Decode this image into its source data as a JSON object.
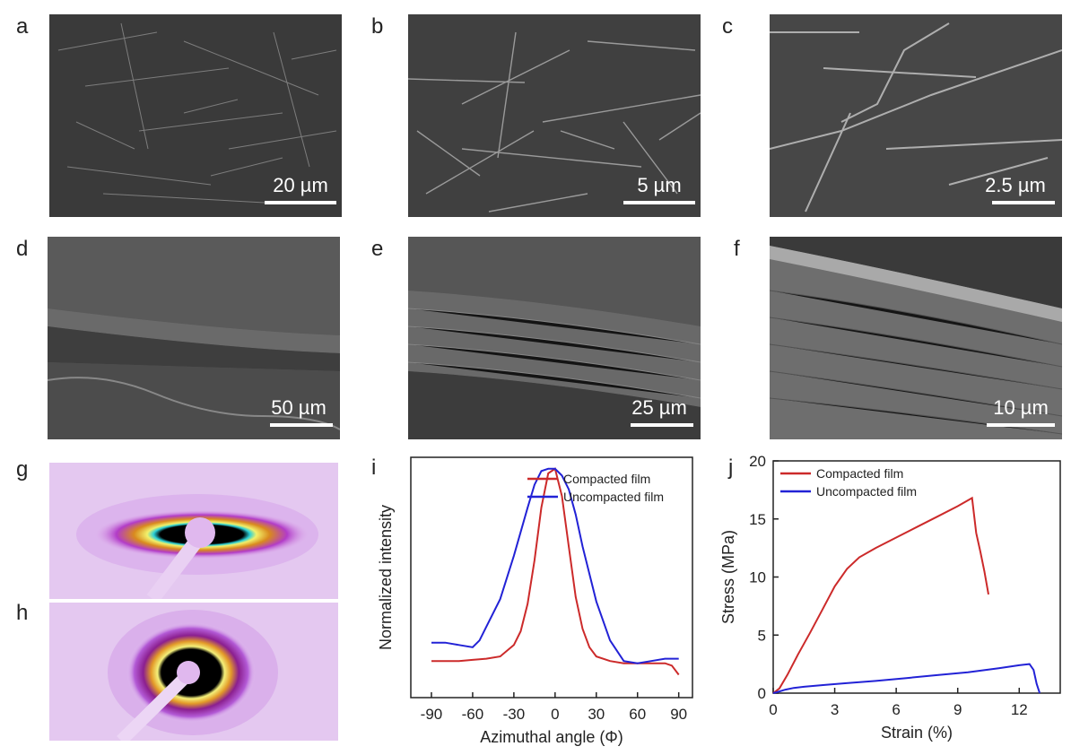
{
  "panels": {
    "a": {
      "label": "a",
      "scale": "20 µm"
    },
    "b": {
      "label": "b",
      "scale": "5 µm"
    },
    "c": {
      "label": "c",
      "scale": "2.5 µm"
    },
    "d": {
      "label": "d",
      "scale": "50 µm"
    },
    "e": {
      "label": "e",
      "scale": "25 µm"
    },
    "f": {
      "label": "f",
      "scale": "10 µm"
    },
    "g": {
      "label": "g"
    },
    "h": {
      "label": "h"
    },
    "i": {
      "label": "i"
    },
    "j": {
      "label": "j"
    }
  },
  "colors": {
    "compacted": "#cc2a2a",
    "uncompacted": "#2222d6"
  },
  "chart_data": [
    {
      "panel": "i",
      "type": "line",
      "xlabel": "Azimuthal angle (Φ)",
      "ylabel": "Normalized intensity",
      "xlim": [
        -105,
        100
      ],
      "ylim": [
        0,
        1.05
      ],
      "xticks": [
        -90,
        -60,
        -30,
        0,
        30,
        60,
        90
      ],
      "yticks": [],
      "legend_position": "top-right",
      "series": [
        {
          "name": "Compacted film",
          "color": "#cc2a2a",
          "x": [
            -90,
            -80,
            -70,
            -60,
            -50,
            -40,
            -30,
            -25,
            -20,
            -15,
            -10,
            -5,
            0,
            5,
            10,
            15,
            20,
            25,
            30,
            40,
            50,
            60,
            70,
            80,
            85,
            90
          ],
          "y": [
            0.16,
            0.16,
            0.16,
            0.165,
            0.17,
            0.18,
            0.23,
            0.29,
            0.41,
            0.6,
            0.83,
            0.98,
            1.0,
            0.88,
            0.66,
            0.44,
            0.3,
            0.22,
            0.18,
            0.16,
            0.15,
            0.15,
            0.15,
            0.15,
            0.14,
            0.1
          ]
        },
        {
          "name": "Uncompacted film",
          "color": "#2222d6",
          "x": [
            -90,
            -80,
            -70,
            -60,
            -55,
            -50,
            -40,
            -30,
            -20,
            -15,
            -10,
            -5,
            0,
            5,
            10,
            15,
            20,
            30,
            40,
            50,
            60,
            70,
            80,
            90
          ],
          "y": [
            0.24,
            0.24,
            0.23,
            0.22,
            0.25,
            0.31,
            0.43,
            0.62,
            0.83,
            0.93,
            0.99,
            1.0,
            1.0,
            0.97,
            0.91,
            0.8,
            0.66,
            0.42,
            0.25,
            0.16,
            0.15,
            0.16,
            0.17,
            0.17
          ]
        }
      ]
    },
    {
      "panel": "j",
      "type": "line",
      "xlabel": "Strain (%)",
      "ylabel": "Stress (MPa)",
      "xlim": [
        0,
        14
      ],
      "ylim": [
        0,
        20
      ],
      "xticks": [
        0,
        3,
        6,
        9,
        12
      ],
      "xticklabels": [
        "0",
        "3",
        "6",
        "9",
        "12"
      ],
      "yticks": [
        0,
        5,
        10,
        15,
        20
      ],
      "yticklabels": [
        "0",
        "5",
        "10",
        "15",
        "20"
      ],
      "legend_position": "top-left",
      "series": [
        {
          "name": "Compacted film",
          "color": "#cc2a2a",
          "x": [
            0,
            0.3,
            0.7,
            1.2,
            1.8,
            2.4,
            3.0,
            3.6,
            4.2,
            5.0,
            6.0,
            7.0,
            8.0,
            9.0,
            9.5,
            9.7,
            9.9,
            10.1,
            10.3,
            10.5
          ],
          "y": [
            0,
            0.4,
            1.6,
            3.3,
            5.2,
            7.2,
            9.2,
            10.7,
            11.7,
            12.5,
            13.4,
            14.3,
            15.2,
            16.1,
            16.6,
            16.8,
            13.8,
            12.2,
            10.5,
            8.5
          ]
        },
        {
          "name": "Uncompacted film",
          "color": "#2222d6",
          "x": [
            0,
            0.3,
            0.6,
            1.0,
            1.5,
            2.5,
            3.5,
            5.0,
            6.5,
            8.0,
            9.5,
            11.0,
            12.0,
            12.5,
            12.7,
            12.85,
            13.0
          ],
          "y": [
            0,
            0.15,
            0.3,
            0.45,
            0.55,
            0.7,
            0.85,
            1.05,
            1.3,
            1.55,
            1.8,
            2.15,
            2.4,
            2.5,
            2.0,
            0.8,
            0.0
          ]
        }
      ]
    }
  ]
}
